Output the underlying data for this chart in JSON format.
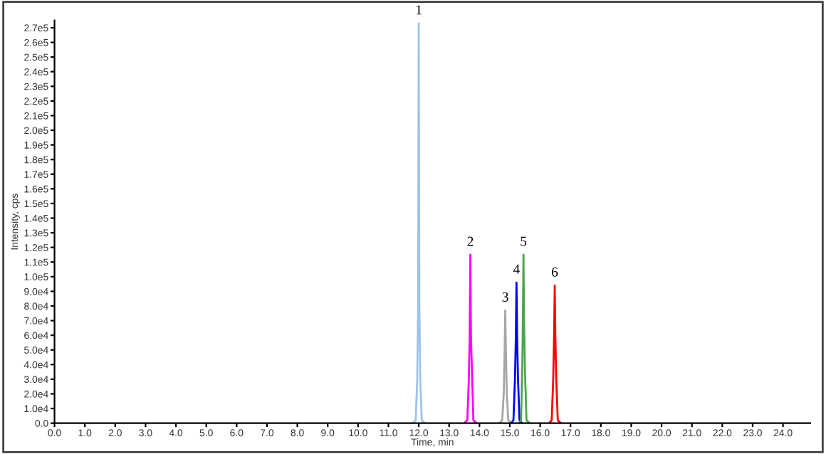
{
  "chart_data": {
    "type": "line",
    "xlabel": "Time, min",
    "ylabel": "Intensity, cps",
    "series": [
      {
        "color": "#9dc3e6",
        "x": [
          11.8,
          11.9,
          11.95,
          11.98,
          12.0,
          12.02,
          12.05,
          12.1,
          12.2
        ],
        "values": [
          0,
          2000,
          30000,
          80000,
          273000,
          80000,
          30000,
          2000,
          0
        ]
      },
      {
        "color": "#ff00ff",
        "x": [
          13.5,
          13.6,
          13.65,
          13.68,
          13.7,
          13.72,
          13.76,
          13.8,
          13.9
        ],
        "values": [
          0,
          2000,
          30000,
          60000,
          115000,
          60000,
          30000,
          2000,
          0
        ]
      },
      {
        "color": "#a6a6a6",
        "x": [
          14.65,
          14.75,
          14.8,
          14.83,
          14.85,
          14.87,
          14.9,
          14.95,
          15.05
        ],
        "values": [
          0,
          2000,
          20000,
          50000,
          77000,
          50000,
          20000,
          2000,
          0
        ]
      },
      {
        "color": "#0000ff",
        "x": [
          15.05,
          15.12,
          15.17,
          15.2,
          15.22,
          15.24,
          15.27,
          15.32,
          15.4
        ],
        "values": [
          0,
          2000,
          30000,
          60000,
          96000,
          60000,
          30000,
          2000,
          0
        ]
      },
      {
        "color": "#4ca64c",
        "x": [
          15.3,
          15.37,
          15.41,
          15.43,
          15.45,
          15.47,
          15.5,
          15.55,
          15.65
        ],
        "values": [
          0,
          2000,
          35000,
          70000,
          115000,
          70000,
          35000,
          2000,
          0
        ]
      },
      {
        "color": "#ff0000",
        "x": [
          16.3,
          16.38,
          16.43,
          16.46,
          16.48,
          16.5,
          16.53,
          16.58,
          16.68
        ],
        "values": [
          0,
          2000,
          30000,
          60000,
          94000,
          60000,
          30000,
          2000,
          0
        ]
      }
    ],
    "annotations": [
      {
        "text": "1",
        "x": 12.0,
        "y": 273000
      },
      {
        "text": "2",
        "x": 13.7,
        "y": 115000
      },
      {
        "text": "3",
        "x": 14.85,
        "y": 77000
      },
      {
        "text": "4",
        "x": 15.22,
        "y": 96000
      },
      {
        "text": "5",
        "x": 15.45,
        "y": 115000
      },
      {
        "text": "6",
        "x": 16.48,
        "y": 94000
      }
    ],
    "xlim": [
      0,
      24.9
    ],
    "ylim": [
      0,
      275000
    ],
    "xticks": [
      {
        "value": 0,
        "label": "0.0"
      },
      {
        "value": 1,
        "label": "1.0"
      },
      {
        "value": 2,
        "label": "2.0"
      },
      {
        "value": 3,
        "label": "3.0"
      },
      {
        "value": 4,
        "label": "4.0"
      },
      {
        "value": 5,
        "label": "5.0"
      },
      {
        "value": 6,
        "label": "6.0"
      },
      {
        "value": 7,
        "label": "7.0"
      },
      {
        "value": 8,
        "label": "8.0"
      },
      {
        "value": 9,
        "label": "9.0"
      },
      {
        "value": 10,
        "label": "10.0"
      },
      {
        "value": 11,
        "label": "11.0"
      },
      {
        "value": 12,
        "label": "12.0"
      },
      {
        "value": 13,
        "label": "13.0"
      },
      {
        "value": 14,
        "label": "14.0"
      },
      {
        "value": 15,
        "label": "15.0"
      },
      {
        "value": 16,
        "label": "16.0"
      },
      {
        "value": 17,
        "label": "17.0"
      },
      {
        "value": 18,
        "label": "18.0"
      },
      {
        "value": 19,
        "label": "19.0"
      },
      {
        "value": 20,
        "label": "20.0"
      },
      {
        "value": 21,
        "label": "21.0"
      },
      {
        "value": 22,
        "label": "22.0"
      },
      {
        "value": 23,
        "label": "23.0"
      },
      {
        "value": 24,
        "label": "24.0"
      }
    ],
    "yticks": [
      {
        "value": 0,
        "label": "0.0"
      },
      {
        "value": 10000,
        "label": "1.0e4"
      },
      {
        "value": 20000,
        "label": "2.0e4"
      },
      {
        "value": 30000,
        "label": "3.0e4"
      },
      {
        "value": 40000,
        "label": "4.0e4"
      },
      {
        "value": 50000,
        "label": "5.0e4"
      },
      {
        "value": 60000,
        "label": "6.0e4"
      },
      {
        "value": 70000,
        "label": "7.0e4"
      },
      {
        "value": 80000,
        "label": "8.0e4"
      },
      {
        "value": 90000,
        "label": "9.0e4"
      },
      {
        "value": 100000,
        "label": "1.0e5"
      },
      {
        "value": 110000,
        "label": "1.1e5"
      },
      {
        "value": 120000,
        "label": "1.2e5"
      },
      {
        "value": 130000,
        "label": "1.3e5"
      },
      {
        "value": 140000,
        "label": "1.4e5"
      },
      {
        "value": 150000,
        "label": "1.5e5"
      },
      {
        "value": 160000,
        "label": "1.6e5"
      },
      {
        "value": 170000,
        "label": "1.7e5"
      },
      {
        "value": 180000,
        "label": "1.8e5"
      },
      {
        "value": 190000,
        "label": "1.9e5"
      },
      {
        "value": 200000,
        "label": "2.0e5"
      },
      {
        "value": 210000,
        "label": "2.1e5"
      },
      {
        "value": 220000,
        "label": "2.2e5"
      },
      {
        "value": 230000,
        "label": "2.3e5"
      },
      {
        "value": 240000,
        "label": "2.4e5"
      },
      {
        "value": 250000,
        "label": "2.5e5"
      },
      {
        "value": 260000,
        "label": "2.6e5"
      },
      {
        "value": 270000,
        "label": "2.7e5"
      }
    ],
    "grid": false,
    "legend": false,
    "marker": "none",
    "line_style": "solid"
  }
}
